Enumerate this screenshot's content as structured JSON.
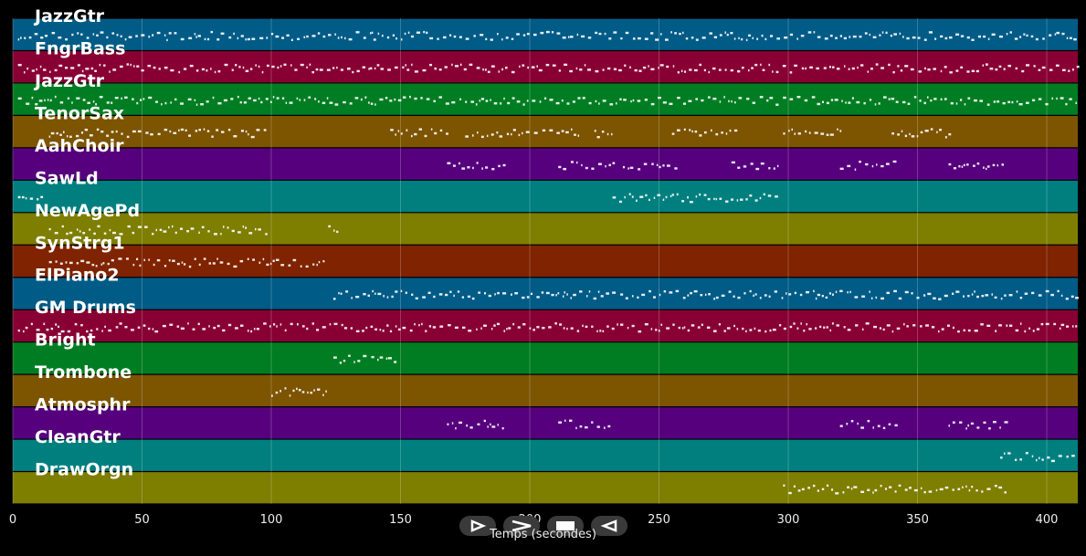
{
  "timeline": {
    "tracks": [
      {
        "name": "JazzGtr",
        "color": "#005b86"
      },
      {
        "name": "FngrBass",
        "color": "#880033"
      },
      {
        "name": "JazzGtr",
        "color": "#007d22"
      },
      {
        "name": "TenorSax",
        "color": "#7d5400"
      },
      {
        "name": "AahChoir",
        "color": "#56007d"
      },
      {
        "name": "SawLd",
        "color": "#007f7f"
      },
      {
        "name": "NewAgePd",
        "color": "#7e7e00"
      },
      {
        "name": "SynStrg1",
        "color": "#7f2300"
      },
      {
        "name": "ElPiano2",
        "color": "#005b86"
      },
      {
        "name": "GM Drums",
        "color": "#880033"
      },
      {
        "name": "Bright",
        "color": "#007d22"
      },
      {
        "name": "Trombone",
        "color": "#7d5400"
      },
      {
        "name": "Atmosphr",
        "color": "#56007d"
      },
      {
        "name": "CleanGtr",
        "color": "#007f7f"
      },
      {
        "name": "DrawOrgn",
        "color": "#7e7e00"
      }
    ],
    "xaxis": {
      "label": "Temps (secondes)",
      "range": [
        0,
        412
      ],
      "ticks": [
        0,
        50,
        100,
        150,
        200,
        250,
        300,
        350,
        400
      ]
    },
    "grid": true,
    "note_color": "#ffffff"
  },
  "transport": {
    "buttons": [
      {
        "name": "play-button",
        "icon": "play-icon"
      },
      {
        "name": "fast-forward-button",
        "icon": "fast-forward-icon"
      },
      {
        "name": "stop-button",
        "icon": "stop-icon"
      },
      {
        "name": "rewind-button",
        "icon": "rewind-icon"
      }
    ]
  }
}
